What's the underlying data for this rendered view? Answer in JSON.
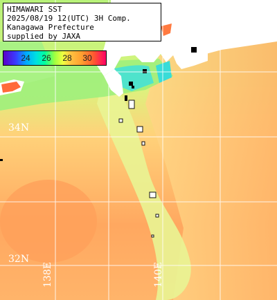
{
  "header": {
    "line1": "HIMAWARI SST",
    "line2": "2025/08/19 12(UTC) 3H Comp.",
    "line3": "Kanagawa Prefecture",
    "line4": "supplied by JAXA"
  },
  "colorbar": {
    "ticks": [
      "24",
      "26",
      "28",
      "30"
    ],
    "unit_hint": "SST"
  },
  "grid_labels": {
    "lat_34": "34N",
    "lat_32": "32N",
    "lon_138": "138E",
    "lon_140": "140E"
  },
  "colors": {
    "land": "#ffffff",
    "grid": "#ffffff",
    "warm_sea": "#ffa55e",
    "mid_sea": "#f5e08a",
    "cool_sea": "#a8f080",
    "bay": "#3fe3c8",
    "no_data": "#000000"
  }
}
